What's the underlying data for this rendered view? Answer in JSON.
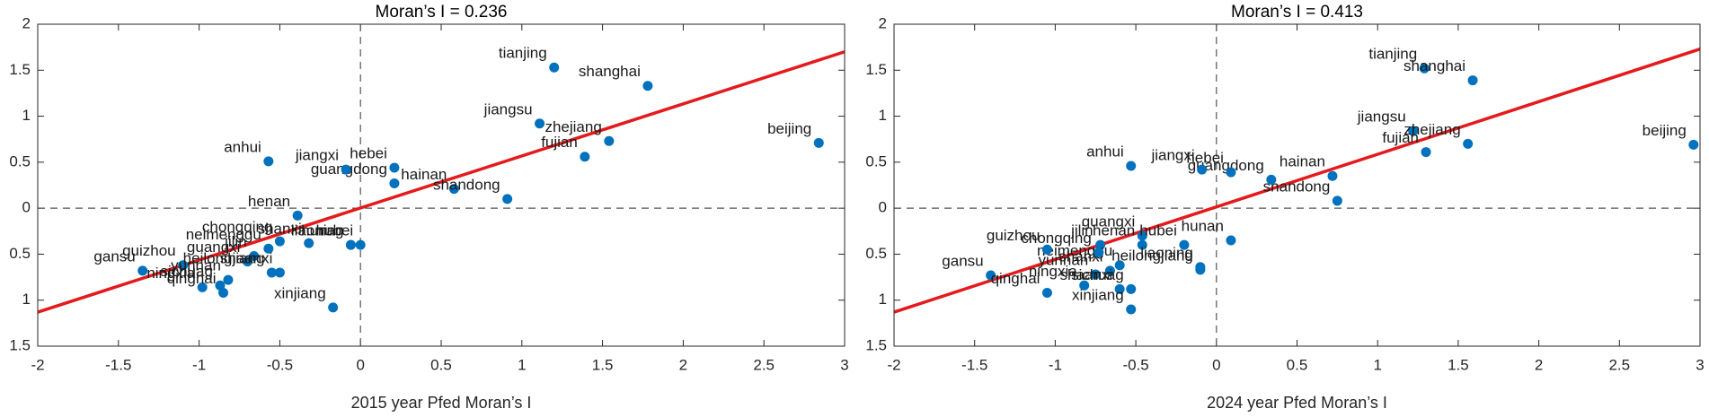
{
  "chart_data": [
    {
      "type": "scatter",
      "title": "Moran’s I = 0.236",
      "xlabel": "2015 year Pfed Moran’s I",
      "color": "#0072bd",
      "point_labels": [
        "tianjing",
        "shanghai",
        "jiangsu",
        "zhejiang",
        "fujian",
        "beijing",
        "hainan",
        "shandong",
        "hebei",
        "guangdong",
        "jiangxi",
        "anhui",
        "henan",
        "chongqing",
        "shanxi",
        "liaoning",
        "hubei",
        "hunan",
        "gansu",
        "guizhou",
        "ningxia",
        "sichuag",
        "qinghai",
        "yunnan",
        "guangxi",
        "jilin",
        "neimenggu",
        "shaanxi",
        "heilongjiang",
        "xinjiang"
      ],
      "x": [
        1.2,
        1.78,
        1.11,
        1.54,
        1.39,
        2.84,
        0.58,
        0.91,
        0.21,
        0.21,
        -0.09,
        -0.57,
        -0.39,
        -0.5,
        -0.32,
        -0.06,
        0.0,
        -0.06,
        -1.35,
        -1.1,
        -0.98,
        -0.87,
        -0.85,
        -0.82,
        -0.7,
        -0.66,
        -0.57,
        -0.5,
        -0.55,
        -0.17
      ],
      "values": [
        1.53,
        1.33,
        0.92,
        0.73,
        0.56,
        0.71,
        0.21,
        0.1,
        0.44,
        0.27,
        0.42,
        0.51,
        -0.08,
        -0.36,
        -0.38,
        -0.4,
        -0.4,
        -0.4,
        -0.68,
        -0.62,
        -0.86,
        -0.84,
        -0.92,
        -0.78,
        -0.58,
        -0.52,
        -0.44,
        -0.7,
        -0.7,
        -1.08
      ],
      "fit_line": {
        "x": [
          -2,
          3
        ],
        "y": [
          -1.13,
          1.7
        ],
        "color": "#e41a1c"
      },
      "reference_lines": {
        "x": 0,
        "y": 0
      },
      "xlim": [
        -2,
        3
      ],
      "ylim": [
        -1.5,
        2
      ],
      "xticks": [
        -2,
        -1.5,
        -1,
        -0.5,
        0,
        0.5,
        1,
        1.5,
        2,
        2.5,
        3
      ],
      "yticks": [
        2,
        1.5,
        1,
        0.5,
        0,
        {
          "value": -0.5,
          "label": "0.5"
        },
        {
          "value": -1,
          "label": "1"
        },
        {
          "value": -1.5,
          "label": "1.5"
        }
      ]
    },
    {
      "type": "scatter",
      "title": "Moran’s I = 0.413",
      "xlabel": "2024 year Pfed Moran’s I",
      "color": "#0072bd",
      "point_labels": [
        "tianjing",
        "shanghai",
        "jiangsu",
        "zhejiang",
        "fujian",
        "beijing",
        "hainan",
        "shandong",
        "guangdong",
        "hebei",
        "jiangxi",
        "anhui",
        "guangxi",
        "henan",
        "jilin",
        "hubei",
        "hunan",
        "liaoning",
        "heilongjiang",
        "neimenggu",
        "shanxi",
        "chongqing",
        "guizhou",
        "gansu",
        "qinghai",
        "ningxia",
        "yunnan",
        "shaanxi",
        "sichuag",
        "xinjiang"
      ],
      "x": [
        1.29,
        1.59,
        1.22,
        1.56,
        1.3,
        2.96,
        0.72,
        0.75,
        0.34,
        0.09,
        -0.09,
        -0.53,
        -0.46,
        -0.46,
        -0.72,
        -0.2,
        0.09,
        -0.1,
        -0.1,
        -0.6,
        -0.66,
        -0.73,
        -1.05,
        -1.4,
        -1.05,
        -0.82,
        -0.75,
        -0.6,
        -0.53,
        -0.53
      ],
      "values": [
        1.52,
        1.39,
        0.84,
        0.7,
        0.61,
        0.69,
        0.35,
        0.08,
        0.31,
        0.39,
        0.42,
        0.46,
        -0.3,
        -0.4,
        -0.4,
        -0.4,
        -0.35,
        -0.64,
        -0.67,
        -0.62,
        -0.68,
        -0.48,
        -0.45,
        -0.73,
        -0.92,
        -0.84,
        -0.72,
        -0.88,
        -0.88,
        -1.1
      ],
      "fit_line": {
        "x": [
          -2,
          3
        ],
        "y": [
          -1.13,
          1.73
        ],
        "color": "#e41a1c"
      },
      "reference_lines": {
        "x": 0,
        "y": 0
      },
      "xlim": [
        -2,
        3
      ],
      "ylim": [
        -1.5,
        2
      ],
      "xticks": [
        -2,
        -1.5,
        -1,
        -0.5,
        0,
        0.5,
        1,
        1.5,
        2,
        2.5,
        3
      ],
      "yticks": [
        2,
        1.5,
        1,
        0.5,
        0,
        {
          "value": -0.5,
          "label": "0.5"
        },
        {
          "value": -1,
          "label": "1"
        },
        {
          "value": -1.5,
          "label": "1.5"
        }
      ]
    }
  ]
}
